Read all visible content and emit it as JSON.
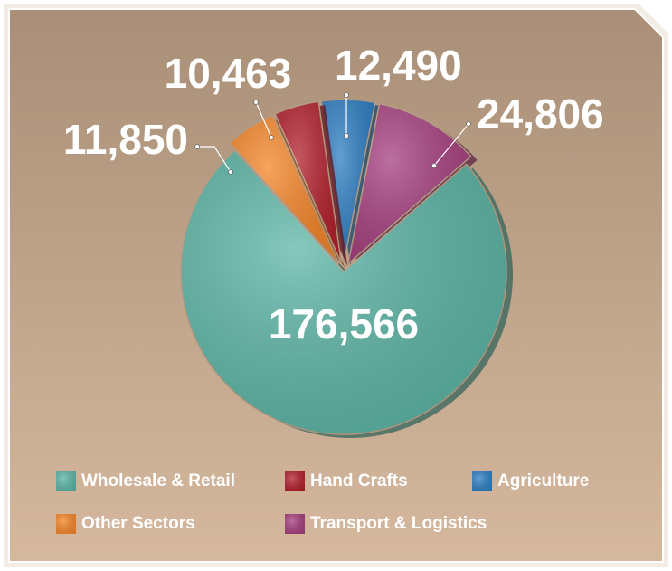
{
  "chart_data": {
    "type": "pie",
    "categories": [
      "Wholesale & Retail",
      "Hand Crafts",
      "Agriculture",
      "Other Sectors",
      "Transport & Logistics"
    ],
    "values": [
      176566,
      10463,
      12490,
      11850,
      24806
    ],
    "value_labels": [
      "176,566",
      "10,463",
      "12,490",
      "11,850",
      "24,806"
    ],
    "colors": [
      "#5db5a6",
      "#b2202d",
      "#2f7fc2",
      "#f5862a",
      "#a6407f"
    ]
  }
}
